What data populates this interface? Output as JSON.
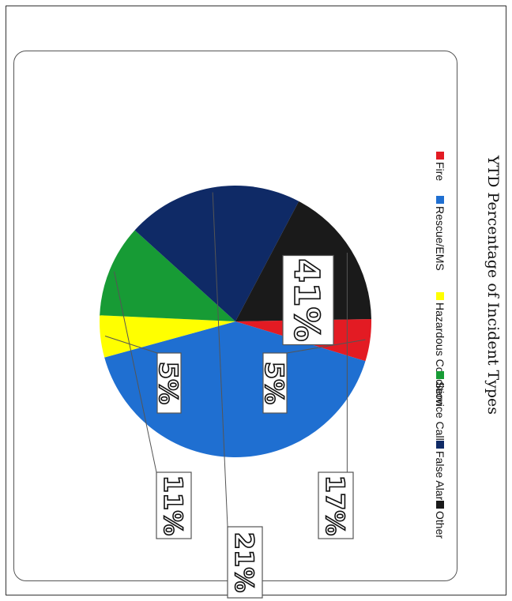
{
  "chart_data": {
    "type": "pie",
    "title": "YTD Percentage of Incident Types",
    "orientation": "rotated 90° clockwise",
    "legend_position": "top",
    "slices": [
      {
        "label": "Fire",
        "value": 5,
        "color": "#e31b23"
      },
      {
        "label": "Rescue/EMS",
        "value": 41,
        "color": "#1f6fd1"
      },
      {
        "label": "Hazardous Condition",
        "value": 5,
        "color": "#ffff00"
      },
      {
        "label": "Service Call",
        "value": 11,
        "color": "#179b35"
      },
      {
        "label": "False Alarm",
        "value": 21,
        "color": "#0f2a66"
      },
      {
        "label": "Other",
        "value": 17,
        "color": "#1a1a1a"
      }
    ],
    "data_labels": [
      "5%",
      "41%",
      "5%",
      "11%",
      "21%",
      "17%"
    ]
  }
}
